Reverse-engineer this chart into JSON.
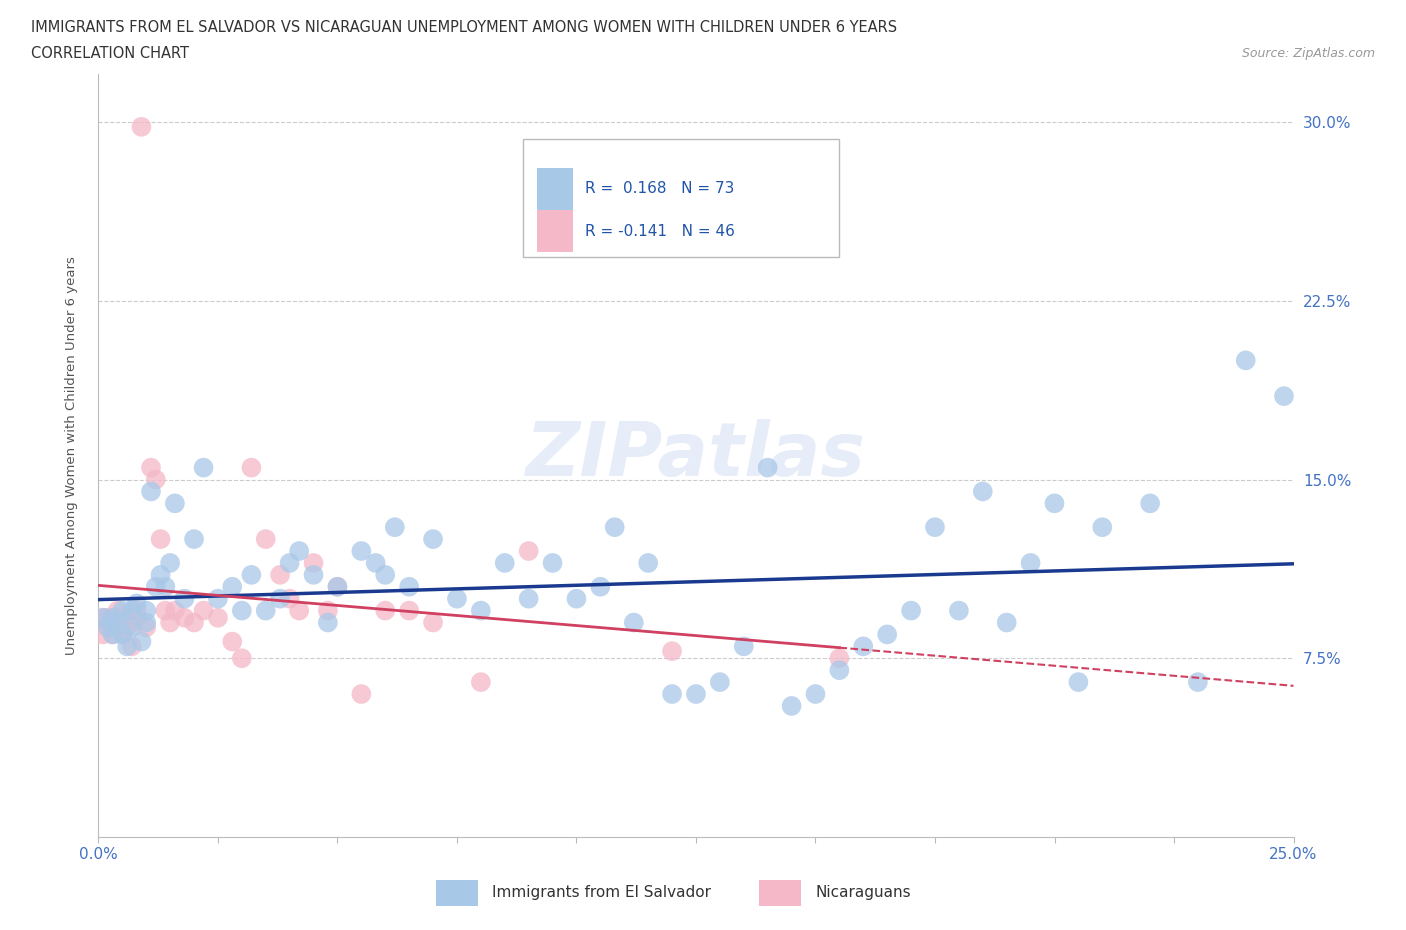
{
  "title_line1": "IMMIGRANTS FROM EL SALVADOR VS NICARAGUAN UNEMPLOYMENT AMONG WOMEN WITH CHILDREN UNDER 6 YEARS",
  "title_line2": "CORRELATION CHART",
  "source": "Source: ZipAtlas.com",
  "ylabel": "Unemployment Among Women with Children Under 6 years",
  "xlim": [
    0.0,
    0.25
  ],
  "ylim": [
    0.0,
    0.32
  ],
  "yticks": [
    0.075,
    0.15,
    0.225,
    0.3
  ],
  "ytick_labels": [
    "7.5%",
    "15.0%",
    "22.5%",
    "30.0%"
  ],
  "xticks": [
    0.0,
    0.025,
    0.05,
    0.075,
    0.1,
    0.125,
    0.15,
    0.175,
    0.2,
    0.225,
    0.25
  ],
  "color_blue": "#a8c8e8",
  "color_pink": "#f4b8c8",
  "line_blue": "#1a3a8f",
  "line_pink": "#d04060",
  "R_blue": 0.168,
  "N_blue": 73,
  "R_pink": -0.141,
  "N_pink": 46,
  "legend_label_blue": "Immigrants from El Salvador",
  "legend_label_pink": "Nicaraguans",
  "blue_x": [
    0.001,
    0.002,
    0.003,
    0.003,
    0.004,
    0.005,
    0.005,
    0.006,
    0.007,
    0.007,
    0.008,
    0.009,
    0.01,
    0.01,
    0.011,
    0.012,
    0.013,
    0.014,
    0.015,
    0.016,
    0.018,
    0.02,
    0.022,
    0.025,
    0.028,
    0.03,
    0.032,
    0.035,
    0.038,
    0.04,
    0.042,
    0.045,
    0.048,
    0.05,
    0.055,
    0.058,
    0.06,
    0.062,
    0.065,
    0.07,
    0.075,
    0.08,
    0.085,
    0.09,
    0.095,
    0.1,
    0.105,
    0.108,
    0.112,
    0.115,
    0.12,
    0.125,
    0.13,
    0.135,
    0.14,
    0.145,
    0.15,
    0.155,
    0.16,
    0.165,
    0.17,
    0.175,
    0.18,
    0.185,
    0.19,
    0.195,
    0.2,
    0.205,
    0.21,
    0.22,
    0.23,
    0.24,
    0.248
  ],
  "blue_y": [
    0.092,
    0.088,
    0.085,
    0.092,
    0.09,
    0.085,
    0.095,
    0.08,
    0.095,
    0.088,
    0.098,
    0.082,
    0.09,
    0.095,
    0.145,
    0.105,
    0.11,
    0.105,
    0.115,
    0.14,
    0.1,
    0.125,
    0.155,
    0.1,
    0.105,
    0.095,
    0.11,
    0.095,
    0.1,
    0.115,
    0.12,
    0.11,
    0.09,
    0.105,
    0.12,
    0.115,
    0.11,
    0.13,
    0.105,
    0.125,
    0.1,
    0.095,
    0.115,
    0.1,
    0.115,
    0.1,
    0.105,
    0.13,
    0.09,
    0.115,
    0.06,
    0.06,
    0.065,
    0.08,
    0.155,
    0.055,
    0.06,
    0.07,
    0.08,
    0.085,
    0.095,
    0.13,
    0.095,
    0.145,
    0.09,
    0.115,
    0.14,
    0.065,
    0.13,
    0.14,
    0.065,
    0.2,
    0.185
  ],
  "pink_x": [
    0.001,
    0.001,
    0.002,
    0.002,
    0.003,
    0.003,
    0.004,
    0.004,
    0.005,
    0.005,
    0.006,
    0.006,
    0.007,
    0.007,
    0.008,
    0.008,
    0.009,
    0.01,
    0.011,
    0.012,
    0.013,
    0.014,
    0.015,
    0.016,
    0.018,
    0.02,
    0.022,
    0.025,
    0.028,
    0.03,
    0.032,
    0.035,
    0.038,
    0.04,
    0.042,
    0.045,
    0.048,
    0.05,
    0.055,
    0.06,
    0.065,
    0.07,
    0.08,
    0.09,
    0.12,
    0.155
  ],
  "pink_y": [
    0.085,
    0.092,
    0.088,
    0.092,
    0.085,
    0.09,
    0.092,
    0.095,
    0.085,
    0.09,
    0.088,
    0.092,
    0.08,
    0.09,
    0.095,
    0.092,
    0.298,
    0.088,
    0.155,
    0.15,
    0.125,
    0.095,
    0.09,
    0.095,
    0.092,
    0.09,
    0.095,
    0.092,
    0.082,
    0.075,
    0.155,
    0.125,
    0.11,
    0.1,
    0.095,
    0.115,
    0.095,
    0.105,
    0.06,
    0.095,
    0.095,
    0.09,
    0.065,
    0.12,
    0.078,
    0.075
  ]
}
